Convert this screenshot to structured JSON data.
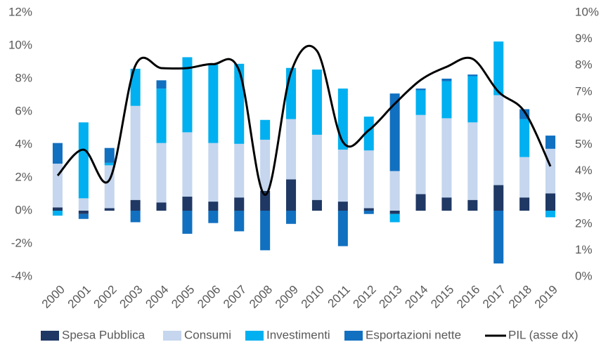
{
  "chart_data": {
    "type": "bar",
    "stacked": true,
    "categories": [
      "2000",
      "2001",
      "2002",
      "2003",
      "2004",
      "2005",
      "2006",
      "2007",
      "2008",
      "2009",
      "2010",
      "2011",
      "2012",
      "2013",
      "2014",
      "2015",
      "2016",
      "2017",
      "2018",
      "2019"
    ],
    "series": [
      {
        "name": "Spesa Pubblica",
        "color": "#1f3864",
        "values": [
          0.2,
          -0.2,
          0.15,
          0.65,
          0.5,
          0.85,
          0.55,
          0.8,
          1.2,
          1.9,
          0.65,
          0.55,
          0.15,
          -0.2,
          1.0,
          0.8,
          0.65,
          1.55,
          0.8,
          1.05
        ]
      },
      {
        "name": "Consumi",
        "color": "#c5d6ee",
        "values": [
          2.65,
          0.75,
          2.6,
          5.7,
          3.6,
          3.9,
          3.55,
          3.25,
          3.1,
          3.65,
          3.95,
          3.15,
          3.5,
          2.4,
          4.8,
          4.8,
          4.7,
          5.45,
          2.45,
          2.7
        ]
      },
      {
        "name": "Investimenti",
        "color": "#00b0f0",
        "values": [
          -0.3,
          4.6,
          0.15,
          2.25,
          3.3,
          4.55,
          4.75,
          4.85,
          1.2,
          3.1,
          3.95,
          3.7,
          2.05,
          -0.5,
          1.5,
          2.25,
          2.8,
          3.25,
          2.3,
          -0.4
        ]
      },
      {
        "name": "Esportazioni nette",
        "color": "#1170c0",
        "values": [
          1.25,
          -0.3,
          0.9,
          -0.7,
          0.5,
          -1.4,
          -0.75,
          -1.25,
          -2.4,
          -0.8,
          0,
          -2.15,
          -0.2,
          4.7,
          0.1,
          0.15,
          0.1,
          -3.2,
          0.6,
          0.8
        ]
      },
      {
        "name": "PIL (asse dx)",
        "color": "#000000",
        "type": "line",
        "axis": "y2",
        "values": [
          3.83,
          4.81,
          3.67,
          8.0,
          7.9,
          7.9,
          8.05,
          7.8,
          3.1,
          7.75,
          8.55,
          5.1,
          5.55,
          6.55,
          7.45,
          7.95,
          8.25,
          7.0,
          6.25,
          4.18
        ]
      }
    ],
    "ylim": [
      -4,
      12
    ],
    "yticks": [
      {
        "value": -4,
        "label": "-4%"
      },
      {
        "value": -2,
        "label": "-2%"
      },
      {
        "value": 0,
        "label": "0%"
      },
      {
        "value": 2,
        "label": "2%"
      },
      {
        "value": 4,
        "label": "4%"
      },
      {
        "value": 6,
        "label": "6%"
      },
      {
        "value": 8,
        "label": "8%"
      },
      {
        "value": 10,
        "label": "10%"
      },
      {
        "value": 12,
        "label": "12%"
      }
    ],
    "y2lim": [
      0,
      10
    ],
    "y2ticks": [
      {
        "value": 0,
        "label": "0%"
      },
      {
        "value": 1,
        "label": "1%"
      },
      {
        "value": 2,
        "label": "2%"
      },
      {
        "value": 3,
        "label": "3%"
      },
      {
        "value": 4,
        "label": "4%"
      },
      {
        "value": 5,
        "label": "5%"
      },
      {
        "value": 6,
        "label": "6%"
      },
      {
        "value": 7,
        "label": "7%"
      },
      {
        "value": 8,
        "label": "8%"
      },
      {
        "value": 9,
        "label": "9%"
      },
      {
        "value": 10,
        "label": "10%"
      }
    ],
    "grid": false,
    "legend": "bottom"
  }
}
